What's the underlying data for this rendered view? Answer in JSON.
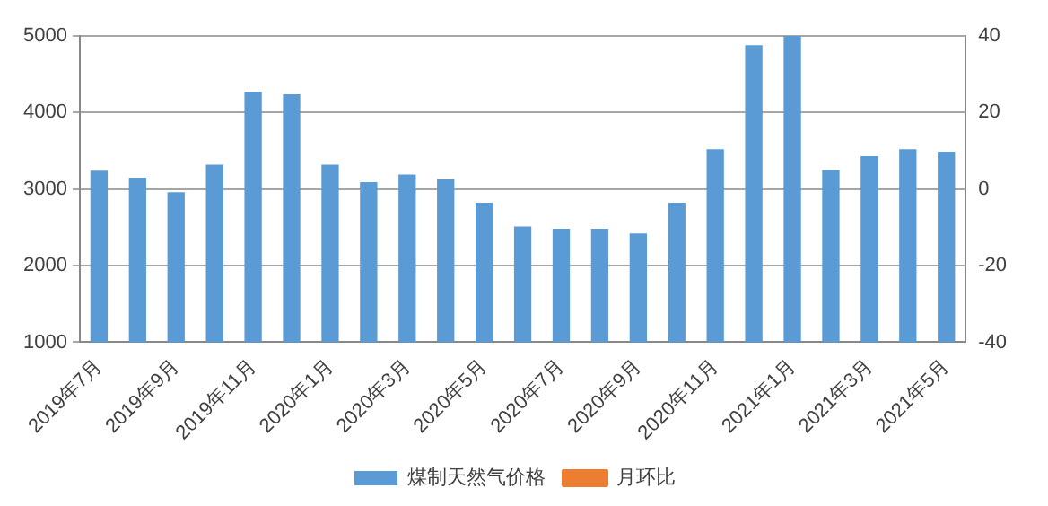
{
  "chart_data": {
    "type": "bar",
    "categories": [
      "2019年7月",
      null,
      "2019年9月",
      null,
      "2019年11月",
      null,
      "2020年1月",
      null,
      "2020年3月",
      null,
      "2020年5月",
      null,
      "2020年7月",
      null,
      "2020年9月",
      null,
      "2020年11月",
      null,
      "2021年1月",
      null,
      "2021年3月",
      null,
      "2021年5月"
    ],
    "series": [
      {
        "name": "煤制天然气价格",
        "color": "#5b9bd5",
        "values": [
          3240,
          3150,
          2960,
          3320,
          4270,
          4240,
          3320,
          3090,
          3190,
          3130,
          2820,
          2510,
          2480,
          2480,
          2420,
          2820,
          3520,
          4880,
          5000,
          3250,
          3430,
          3520,
          3490
        ]
      },
      {
        "name": "月环比",
        "type": "line",
        "axis": "y2",
        "color": "#ed7d31",
        "values": [
          null,
          null,
          null,
          null,
          null,
          null,
          null,
          null,
          null,
          null,
          null,
          null,
          null,
          null,
          null,
          null,
          null,
          null,
          null,
          null,
          null,
          null,
          null
        ]
      }
    ],
    "ylim": [
      1000,
      5000
    ],
    "yticks": [
      1000,
      2000,
      3000,
      4000,
      5000
    ],
    "y2lim": [
      -40,
      40
    ],
    "y2ticks": [
      -40,
      -20,
      0,
      20,
      40
    ],
    "grid": "y",
    "legend": "bottom"
  }
}
